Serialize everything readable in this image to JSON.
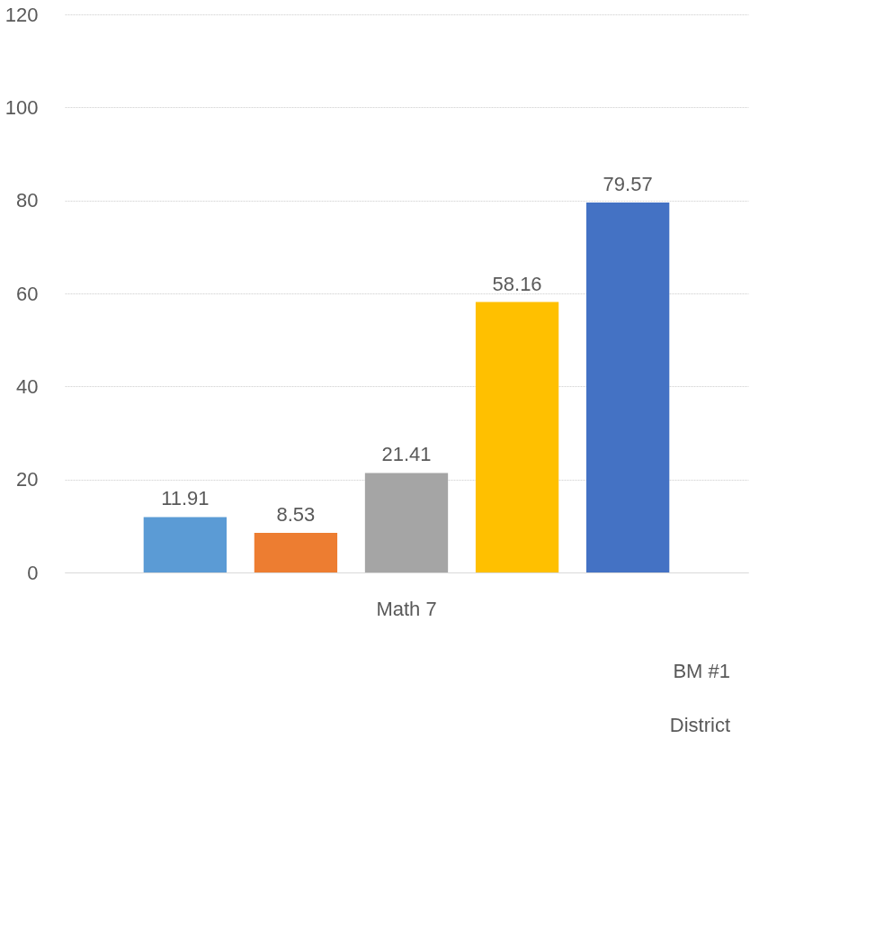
{
  "chart_data": {
    "type": "bar",
    "categories": [
      "Math 7"
    ],
    "series": [
      {
        "color": "#5b9bd5",
        "values": [
          11.91
        ]
      },
      {
        "color": "#ed7d31",
        "values": [
          8.53
        ]
      },
      {
        "color": "#a5a5a5",
        "values": [
          21.41
        ]
      },
      {
        "color": "#ffc000",
        "values": [
          58.16
        ]
      },
      {
        "color": "#4472c4",
        "values": [
          79.57
        ]
      }
    ],
    "ylim": [
      0,
      120
    ],
    "yticks": [
      0,
      20,
      40,
      60,
      80,
      100,
      120
    ],
    "grid": "y",
    "data_labels": true,
    "annotations": [
      "BM #1",
      "District"
    ]
  }
}
